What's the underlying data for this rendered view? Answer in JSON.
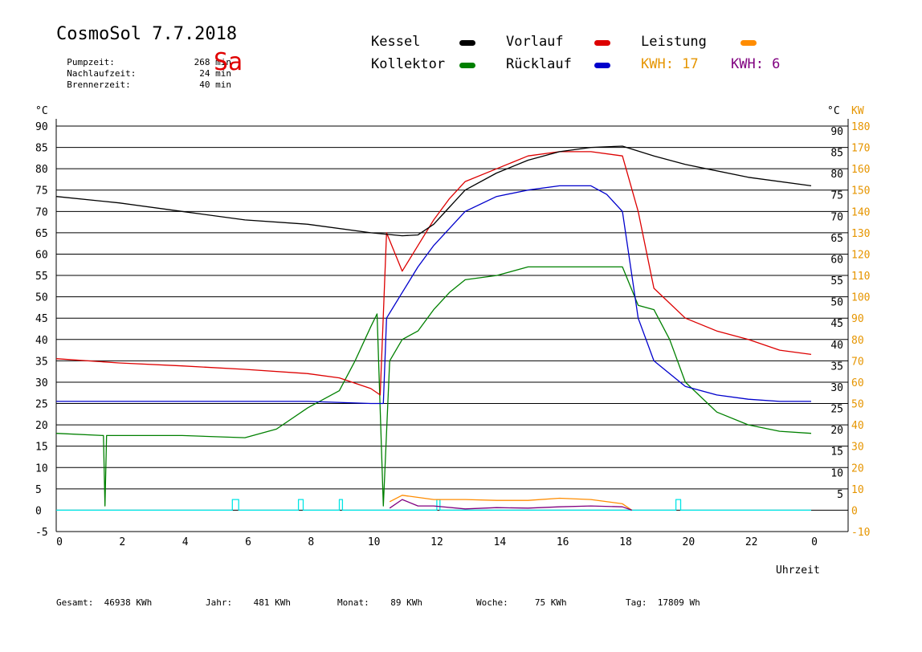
{
  "header": {
    "title": "CosmoSol 7.7.2018",
    "day": "Sa",
    "stats": [
      {
        "label": "Pumpzeit:",
        "value": "268 min"
      },
      {
        "label": "Nachlaufzeit:",
        "value": "24 min"
      },
      {
        "label": "Brennerzeit:",
        "value": "40 min"
      }
    ]
  },
  "legend": {
    "kessel": "Kessel",
    "vorlauf": "Vorlauf",
    "leistung": "Leistung",
    "kollektor": "Kollektor",
    "ruecklauf": "Rücklauf",
    "kwh_orange": "KWH: 17",
    "kwh_purple": "KWH: 6"
  },
  "colors": {
    "kessel": "#000000",
    "vorlauf": "#dd0000",
    "leistung": "#ff8c00",
    "kollektor": "#008000",
    "ruecklauf": "#0000cc",
    "purple": "#800080",
    "pump": "#00e5e5",
    "kw_axis": "#e69500",
    "day": "#e00000"
  },
  "footer": [
    {
      "label": "Gesamt:",
      "value": "46938 KWh"
    },
    {
      "label": "Jahr:",
      "value": "481 KWh"
    },
    {
      "label": "Monat:",
      "value": "89 KWh"
    },
    {
      "label": "Woche:",
      "value": "75 KWh"
    },
    {
      "label": "Tag:",
      "value": "17809 Wh"
    }
  ],
  "chart_data": {
    "type": "line",
    "xlabel": "Uhrzeit",
    "ylabel_left": "°C",
    "ylabel_right_1": "°C",
    "ylabel_right_2": "KW",
    "xlim": [
      0,
      24
    ],
    "ylim": [
      -5,
      90
    ],
    "y2lim": [
      -10,
      180
    ],
    "grid": "horizontal",
    "x_ticks": [
      "0",
      "2",
      "4",
      "6",
      "8",
      "10",
      "12",
      "14",
      "16",
      "18",
      "20",
      "22",
      "0"
    ],
    "y_ticks": [
      -5,
      0,
      5,
      10,
      15,
      20,
      25,
      30,
      35,
      40,
      45,
      50,
      55,
      60,
      65,
      70,
      75,
      80,
      85,
      90
    ],
    "y2_ticks": [
      -10,
      0,
      10,
      20,
      30,
      40,
      50,
      60,
      70,
      80,
      90,
      100,
      110,
      120,
      130,
      140,
      150,
      160,
      170,
      180
    ],
    "series": [
      {
        "name": "Kessel",
        "x": [
          0,
          2,
          4,
          6,
          8,
          10,
          11,
          11.5,
          12,
          12.5,
          13,
          14,
          15,
          16,
          17,
          18,
          19,
          20,
          22,
          24
        ],
        "y": [
          73.5,
          72,
          70,
          68,
          67,
          65,
          64.3,
          64.5,
          67,
          71,
          75,
          79,
          82,
          84,
          85,
          85.3,
          83,
          81,
          78,
          76
        ]
      },
      {
        "name": "Vorlauf",
        "x": [
          0,
          2,
          4,
          6,
          8,
          9,
          10,
          10.3,
          10.5,
          11,
          11.5,
          12,
          12.5,
          13,
          14,
          15,
          16,
          17,
          18,
          18.5,
          19,
          20,
          21,
          22,
          23,
          24
        ],
        "y": [
          35.5,
          34.5,
          33.8,
          33,
          32,
          31,
          28.5,
          27,
          65,
          56,
          62,
          68,
          73,
          77,
          80,
          83,
          84,
          84,
          83,
          70,
          52,
          45,
          42,
          40,
          37.5,
          36.5
        ]
      },
      {
        "name": "Rücklauf",
        "x": [
          0,
          2,
          4,
          6,
          8,
          10,
          10.4,
          10.5,
          11,
          11.5,
          12,
          12.5,
          13,
          14,
          15,
          16,
          17,
          17.5,
          18,
          18.5,
          19,
          20,
          21,
          22,
          23,
          24
        ],
        "y": [
          25.5,
          25.5,
          25.5,
          25.5,
          25.5,
          25,
          25,
          45,
          51,
          57,
          62,
          66,
          70,
          73.5,
          75,
          76,
          76,
          74,
          70,
          45,
          35,
          29,
          27,
          26,
          25.5,
          25.5
        ]
      },
      {
        "name": "Kollektor",
        "x": [
          0,
          1.5,
          1.55,
          1.6,
          1.7,
          2,
          4,
          6,
          7,
          8,
          9,
          9.5,
          10,
          10.2,
          10.4,
          10.6,
          11,
          11.5,
          12,
          12.5,
          13,
          14,
          15,
          16,
          17,
          18,
          18.5,
          19,
          19.5,
          20,
          21,
          22,
          23,
          24
        ],
        "y": [
          18,
          17.5,
          1,
          17.5,
          17.5,
          17.5,
          17.5,
          17,
          19,
          24,
          28,
          35,
          43,
          46,
          1,
          35,
          40,
          42,
          47,
          51,
          54,
          55,
          57,
          57,
          57,
          57,
          48,
          47,
          40,
          30,
          23,
          20,
          18.5,
          18
        ]
      },
      {
        "name": "Leistung",
        "x": [
          10.6,
          11,
          12,
          13,
          14,
          15,
          16,
          17,
          18,
          18.3
        ],
        "y": [
          2,
          3.5,
          2.5,
          2.5,
          2.3,
          2.3,
          2.8,
          2.5,
          1.5,
          0
        ]
      },
      {
        "name": "KWH 6",
        "x": [
          10.6,
          11,
          11.5,
          12,
          13,
          14,
          15,
          16,
          17,
          18,
          18.3
        ],
        "y": [
          0.5,
          2.5,
          1,
          1,
          0.3,
          0.6,
          0.5,
          0.8,
          1.0,
          0.8,
          0
        ]
      },
      {
        "name": "Pumpe",
        "x": [
          0,
          5.6,
          5.6,
          5.8,
          5.8,
          7.7,
          7.7,
          7.85,
          7.85,
          9.0,
          9.0,
          9.1,
          9.1,
          12.1,
          12.1,
          12.2,
          12.2,
          19.7,
          19.7,
          19.85,
          19.85,
          24
        ],
        "y": [
          0,
          0,
          2.5,
          2.5,
          0,
          0,
          2.5,
          2.5,
          0,
          0,
          2.5,
          2.5,
          0,
          0,
          2.5,
          2.5,
          0,
          0,
          2.5,
          2.5,
          0,
          0
        ]
      }
    ]
  }
}
